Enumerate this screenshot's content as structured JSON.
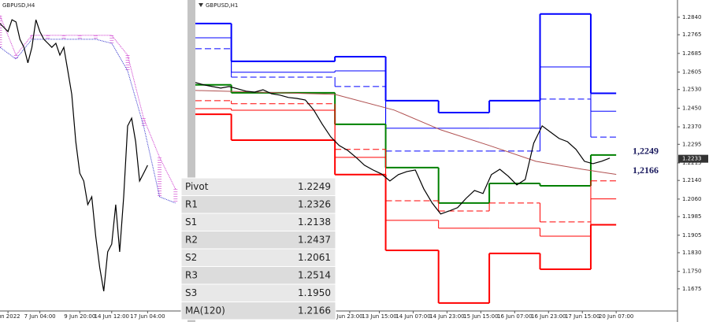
{
  "chart_data": [
    {
      "type": "line",
      "title": "GBPUSD,H4",
      "xlim": [
        0,
        47
      ],
      "ylim": [
        1.15,
        1.29
      ],
      "xticks": [
        {
          "value": 2,
          "label": "Jun 2022"
        },
        {
          "value": 10,
          "label": "7 Jun 04:00"
        },
        {
          "value": 20,
          "label": "9 Jun 20:00"
        },
        {
          "value": 28,
          "label": "14 Jun 12:00"
        },
        {
          "value": 37,
          "label": "17 Jun 04:00"
        }
      ],
      "price": {
        "color": "#000000",
        "x": [
          0,
          1,
          2,
          3,
          4,
          5,
          6,
          7,
          8,
          9,
          10,
          11,
          12,
          13,
          14,
          15,
          16,
          17,
          18,
          19,
          20,
          21,
          22,
          23,
          24,
          25,
          26,
          27,
          28,
          29,
          30,
          31,
          32,
          33,
          34,
          35,
          36,
          37
        ],
        "values": [
          1.2794,
          1.2776,
          1.2758,
          1.2811,
          1.2801,
          1.2723,
          1.2687,
          1.2617,
          1.2687,
          1.2811,
          1.2758,
          1.2723,
          1.2705,
          1.2687,
          1.2705,
          1.2652,
          1.2687,
          1.2581,
          1.2475,
          1.2262,
          1.212,
          1.2085,
          1.1979,
          1.2014,
          1.1837,
          1.1695,
          1.1589,
          1.1766,
          1.1801,
          1.1979,
          1.1766,
          1.2014,
          1.2333,
          1.2368,
          1.2262,
          1.2085,
          1.212,
          1.2156
        ]
      },
      "cloud": {
        "x": [
          0,
          4,
          8,
          12,
          16,
          20,
          24,
          28,
          32,
          36,
          40,
          44
        ],
        "span_a": {
          "color": "#cc33cc",
          "values": [
            1.2829,
            1.2652,
            1.2741,
            1.2741,
            1.2741,
            1.2741,
            1.2741,
            1.2741,
            1.2652,
            1.2368,
            1.2191,
            1.2049
          ]
        },
        "span_b": {
          "color": "#3333cc",
          "values": [
            1.2687,
            1.2634,
            1.2723,
            1.2723,
            1.2723,
            1.2723,
            1.2723,
            1.2705,
            1.2581,
            1.2333,
            1.2014,
            1.1986
          ]
        }
      }
    },
    {
      "type": "line",
      "title": "GBPUSD,H1",
      "xlim": [
        0,
        228
      ],
      "ylim": [
        1.158,
        1.2914
      ],
      "yticks": [
        {
          "value": 1.284,
          "label": "1.2840"
        },
        1.2765,
        1.2685,
        1.2605,
        {
          "value": 1.253,
          "label": "1.2530"
        },
        {
          "value": 1.245,
          "label": "1.2450"
        },
        {
          "value": 1.237,
          "label": "1.2370"
        },
        1.2295,
        1.2215,
        {
          "value": 1.214,
          "label": "1.2140"
        },
        {
          "value": 1.206,
          "label": "1.2060"
        },
        1.1985,
        1.1905,
        {
          "value": 1.183,
          "label": "1.1830"
        },
        {
          "value": 1.175,
          "label": "1.1750"
        },
        1.1675
      ],
      "xticks": [
        {
          "value": 73,
          "label": "Jun 23:00"
        },
        {
          "value": 87,
          "label": "13 Jun 15:00"
        },
        {
          "value": 103,
          "label": "14 Jun 07:00"
        },
        {
          "value": 119,
          "label": "14 Jun 23:00"
        },
        {
          "value": 135,
          "label": "15 Jun 15:00"
        },
        {
          "value": 151,
          "label": "16 Jun 07:00"
        },
        {
          "value": 167,
          "label": "16 Jun 23:00"
        },
        {
          "value": 183,
          "label": "17 Jun 15:00"
        },
        {
          "value": 199,
          "label": "20 Jun 07:00"
        }
      ],
      "current_price": 1.2233,
      "price": {
        "color": "#000000",
        "x": [
          0,
          4,
          8,
          12,
          16,
          20,
          24,
          28,
          32,
          36,
          40,
          44,
          48,
          52,
          56,
          60,
          64,
          68,
          72,
          76,
          80,
          84,
          88,
          92,
          96,
          100,
          104,
          108,
          112,
          116,
          120,
          124,
          128,
          132,
          136,
          140,
          144,
          148,
          152,
          156,
          160,
          164,
          168,
          172,
          176,
          180,
          184,
          188,
          192,
          196
        ],
        "values": [
          1.256,
          1.255,
          1.2543,
          1.2536,
          1.2543,
          1.2533,
          1.2523,
          1.2519,
          1.2529,
          1.2512,
          1.2506,
          1.2496,
          1.2492,
          1.2485,
          1.2442,
          1.2381,
          1.2327,
          1.229,
          1.2269,
          1.2239,
          1.2205,
          1.2185,
          1.2168,
          1.2138,
          1.2165,
          1.2178,
          1.2185,
          1.2104,
          1.2043,
          1.1996,
          1.2009,
          1.2023,
          1.2063,
          1.2097,
          1.2084,
          1.2165,
          1.2188,
          1.2158,
          1.2121,
          1.2144,
          1.23,
          1.2374,
          1.2347,
          1.232,
          1.2306,
          1.2273,
          1.2222,
          1.2212,
          1.2222,
          1.2236
        ]
      },
      "ma": {
        "name": "MA(120)",
        "color": "#b05050",
        "x": [
          0,
          40,
          66,
          94,
          116,
          139,
          161,
          183,
          199
        ],
        "values": [
          1.2526,
          1.2516,
          1.2509,
          1.2442,
          1.2357,
          1.229,
          1.2222,
          1.2188,
          1.2166
        ]
      },
      "levels": {
        "x": [
          0,
          17,
          66,
          90,
          115,
          139,
          163,
          187
        ],
        "x_end": 199,
        "series": [
          {
            "name": "R3",
            "color": "#0000ff",
            "style": "thick",
            "values": [
              1.2813,
              1.2651,
              1.2671,
              1.2482,
              1.2431,
              1.2482,
              1.2854,
              1.2514
            ]
          },
          {
            "name": "R2",
            "color": "#0000ff",
            "style": "thin",
            "values": [
              1.2752,
              1.2604,
              1.261,
              1.2364,
              1.2364,
              1.2364,
              1.2627,
              1.2437
            ]
          },
          {
            "name": "R1",
            "color": "#0000ff",
            "style": "dashed",
            "values": [
              1.2705,
              1.2583,
              1.2543,
              1.2266,
              1.2266,
              1.2266,
              1.2489,
              1.2326
            ]
          },
          {
            "name": "Pivot",
            "color": "#008000",
            "style": "thick",
            "values": [
              1.255,
              1.2516,
              1.2381,
              1.2195,
              1.2043,
              1.2127,
              1.2117,
              1.2249
            ]
          },
          {
            "name": "S1",
            "color": "#ff0000",
            "style": "dashed",
            "values": [
              1.2482,
              1.2469,
              1.2273,
              1.2053,
              1.2009,
              1.2043,
              1.1962,
              1.2138
            ]
          },
          {
            "name": "S2",
            "color": "#ff0000",
            "style": "thin",
            "values": [
              1.2448,
              1.2441,
              1.2239,
              1.1969,
              1.1935,
              1.1935,
              1.1901,
              1.2061
            ]
          },
          {
            "name": "S3",
            "color": "#ff0000",
            "style": "thick",
            "values": [
              1.2424,
              1.2313,
              1.2165,
              1.184,
              1.1614,
              1.1827,
              1.1759,
              1.195
            ]
          }
        ]
      },
      "annotations": [
        {
          "text": "1,2249",
          "value": 1.2249
        },
        {
          "text": "1,2166",
          "value": 1.2166
        }
      ]
    }
  ],
  "pivot_table": {
    "rows": [
      [
        "Pivot",
        "1.2249"
      ],
      [
        "R1",
        "1.2326"
      ],
      [
        "S1",
        "1.2138"
      ],
      [
        "R2",
        "1.2437"
      ],
      [
        "S2",
        "1.2061"
      ],
      [
        "R3",
        "1.2514"
      ],
      [
        "S3",
        "1.1950"
      ],
      [
        "MA(120)",
        "1.2166"
      ]
    ]
  }
}
